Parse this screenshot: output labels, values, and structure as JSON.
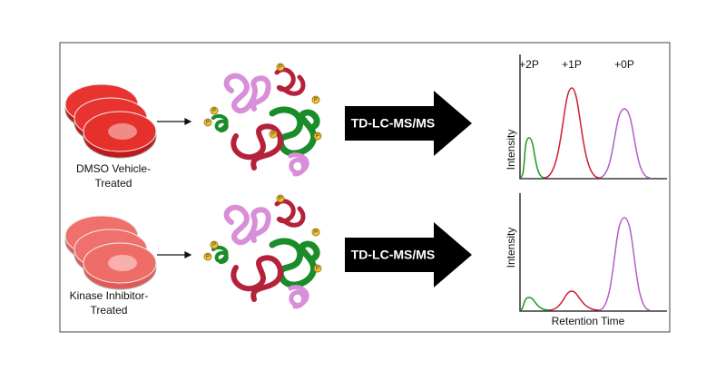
{
  "conditions": [
    {
      "label": [
        "DMSO Vehicle-",
        "Treated"
      ]
    },
    {
      "label": [
        "Kinase Inhibitor-",
        "Treated"
      ]
    }
  ],
  "method": "TD-LC-MS/MS",
  "phospho_label": "P",
  "plot": {
    "peak_labels": [
      "+2P",
      "+1P",
      "+0P"
    ],
    "y_axis": "Intensity",
    "x_axis": "Retention Time"
  }
}
